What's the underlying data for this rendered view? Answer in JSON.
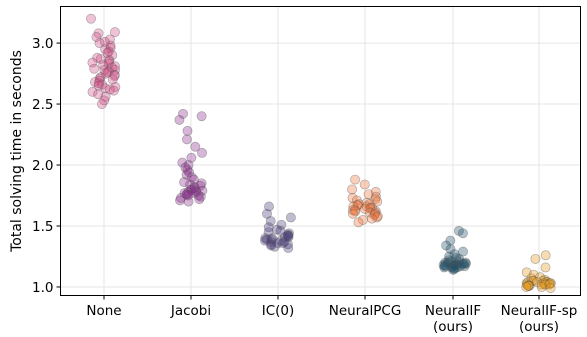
{
  "chart_data": {
    "type": "scatter",
    "subtype": "strip",
    "title": "",
    "xlabel": "",
    "ylabel": "Total solving time in seconds",
    "ylim": [
      0.93,
      3.3
    ],
    "yticks": [
      1.0,
      1.5,
      2.0,
      2.5,
      3.0
    ],
    "ytick_labels": [
      "1.0",
      "1.5",
      "2.0",
      "2.5",
      "3.0"
    ],
    "grid": true,
    "categories": [
      {
        "label_lines": [
          "None"
        ]
      },
      {
        "label_lines": [
          "Jacobi"
        ]
      },
      {
        "label_lines": [
          "IC(0)"
        ]
      },
      {
        "label_lines": [
          "NeuralPCG"
        ]
      },
      {
        "label_lines": [
          "NeuralIF",
          "(ours)"
        ]
      },
      {
        "label_lines": [
          "NeuralIF-sp",
          "(ours)"
        ]
      }
    ],
    "series": [
      {
        "color": "#d4508a",
        "values": [
          3.2,
          3.09,
          3.08,
          3.05,
          3.03,
          3.01,
          3.0,
          2.98,
          2.96,
          2.95,
          2.93,
          2.92,
          2.9,
          2.88,
          2.87,
          2.86,
          2.85,
          2.84,
          2.83,
          2.82,
          2.81,
          2.8,
          2.79,
          2.78,
          2.78,
          2.77,
          2.76,
          2.75,
          2.74,
          2.73,
          2.72,
          2.71,
          2.7,
          2.69,
          2.68,
          2.67,
          2.66,
          2.65,
          2.64,
          2.63,
          2.62,
          2.61,
          2.6,
          2.58,
          2.56,
          2.53,
          2.5
        ]
      },
      {
        "color": "#8c2f8e",
        "values": [
          2.42,
          2.4,
          2.37,
          2.28,
          2.21,
          2.15,
          2.1,
          2.06,
          2.02,
          2.0,
          1.98,
          1.96,
          1.94,
          1.92,
          1.9,
          1.88,
          1.86,
          1.85,
          1.84,
          1.83,
          1.82,
          1.81,
          1.8,
          1.8,
          1.79,
          1.79,
          1.78,
          1.78,
          1.77,
          1.77,
          1.76,
          1.76,
          1.75,
          1.75,
          1.74,
          1.73,
          1.72,
          1.71,
          1.7
        ]
      },
      {
        "color": "#4a3d7a",
        "values": [
          1.66,
          1.6,
          1.57,
          1.54,
          1.51,
          1.49,
          1.47,
          1.46,
          1.45,
          1.44,
          1.43,
          1.42,
          1.42,
          1.41,
          1.41,
          1.4,
          1.4,
          1.39,
          1.39,
          1.38,
          1.38,
          1.37,
          1.37,
          1.36,
          1.36,
          1.35,
          1.35,
          1.34,
          1.33,
          1.32
        ]
      },
      {
        "color": "#f07840",
        "values": [
          1.88,
          1.84,
          1.8,
          1.78,
          1.76,
          1.74,
          1.73,
          1.72,
          1.71,
          1.7,
          1.69,
          1.68,
          1.68,
          1.67,
          1.67,
          1.66,
          1.66,
          1.65,
          1.65,
          1.64,
          1.64,
          1.63,
          1.63,
          1.62,
          1.62,
          1.61,
          1.61,
          1.6,
          1.6,
          1.59,
          1.58,
          1.57,
          1.56,
          1.55,
          1.53
        ]
      },
      {
        "color": "#1f4f6b",
        "values": [
          1.46,
          1.44,
          1.38,
          1.34,
          1.31,
          1.29,
          1.27,
          1.25,
          1.24,
          1.23,
          1.22,
          1.21,
          1.21,
          1.2,
          1.2,
          1.2,
          1.19,
          1.19,
          1.19,
          1.19,
          1.18,
          1.18,
          1.18,
          1.18,
          1.18,
          1.17,
          1.17,
          1.17,
          1.17,
          1.16,
          1.16,
          1.16,
          1.15,
          1.15,
          1.14
        ]
      },
      {
        "color": "#e89a20",
        "values": [
          1.26,
          1.23,
          1.16,
          1.12,
          1.1,
          1.08,
          1.07,
          1.06,
          1.05,
          1.05,
          1.05,
          1.04,
          1.04,
          1.04,
          1.04,
          1.03,
          1.03,
          1.03,
          1.03,
          1.03,
          1.02,
          1.02,
          1.02,
          1.02,
          1.02,
          1.01,
          1.01,
          1.01,
          1.01,
          1.0,
          1.0,
          0.99
        ]
      }
    ]
  }
}
